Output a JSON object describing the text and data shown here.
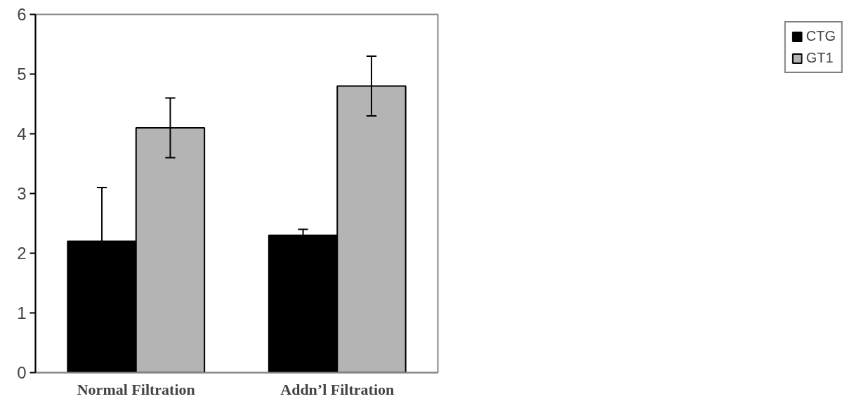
{
  "chart_data": {
    "type": "bar",
    "categories": [
      "Normal Filtration",
      "Addn’l Filtration"
    ],
    "series": [
      {
        "name": "CTG",
        "color": "#000000",
        "values": [
          2.2,
          2.3
        ],
        "errors": [
          [
            2.2,
            3.1
          ],
          [
            2.3,
            2.4
          ]
        ]
      },
      {
        "name": "GT1",
        "color": "#b4b4b4",
        "values": [
          4.1,
          4.8
        ],
        "errors": [
          [
            3.6,
            4.6
          ],
          [
            4.3,
            5.3
          ]
        ]
      }
    ],
    "ylim": [
      0,
      6
    ],
    "yticks": [
      0,
      1,
      2,
      3,
      4,
      5,
      6
    ],
    "grid": false,
    "legend": "right"
  }
}
